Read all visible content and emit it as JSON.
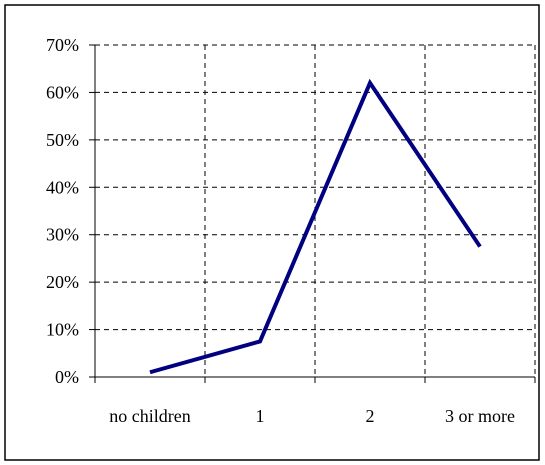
{
  "chart_data": {
    "type": "line",
    "title": "",
    "xlabel": "",
    "ylabel": "",
    "categories": [
      "no children",
      "1",
      "2",
      "3 or more"
    ],
    "series": [
      {
        "values": [
          1,
          7.5,
          62,
          27.5
        ]
      }
    ],
    "ylim": [
      0,
      70
    ],
    "yticks": [
      "0%",
      "10%",
      "20%",
      "30%",
      "40%",
      "50%",
      "60%",
      "70%"
    ],
    "grid": true,
    "grid_style": "dashed",
    "legend": "none",
    "colors": {
      "line": "#000080",
      "grid": "#000000",
      "border": "#000000"
    }
  }
}
